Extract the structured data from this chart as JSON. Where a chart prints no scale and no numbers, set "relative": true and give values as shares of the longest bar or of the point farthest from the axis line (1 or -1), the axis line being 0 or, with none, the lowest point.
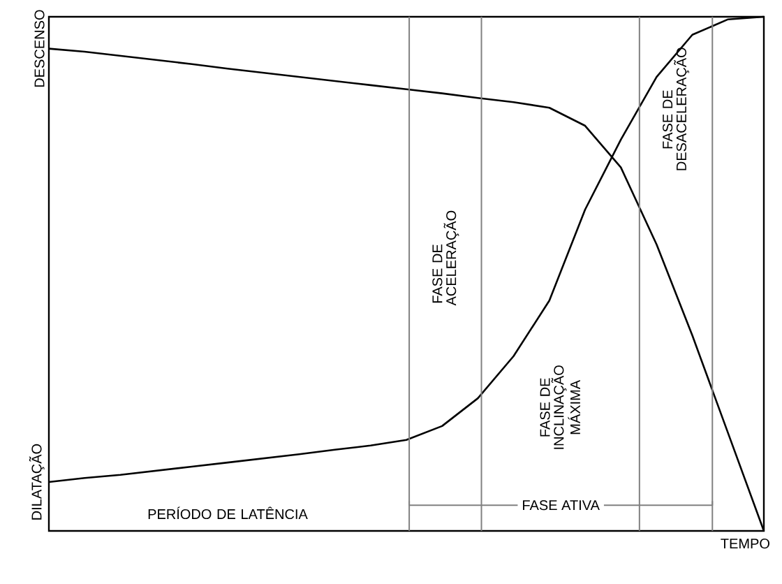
{
  "chart_data": {
    "type": "line",
    "relative": true,
    "xlabel": "TEMPO",
    "tick_labels": false,
    "marker": "none",
    "line_style": "solid",
    "categories": [
      null,
      null,
      null,
      null,
      null,
      null,
      null,
      null,
      null,
      null,
      null,
      null,
      null,
      null,
      null,
      null,
      null,
      null,
      null,
      null,
      null
    ],
    "series": [
      {
        "name": "DESCENSO",
        "color": "#000000",
        "values": [
          0.938,
          0.932,
          0.924,
          0.916,
          0.908,
          0.899,
          0.891,
          0.883,
          0.875,
          0.867,
          0.859,
          0.851,
          0.842,
          0.834,
          0.823,
          0.788,
          0.707,
          0.557,
          0.38,
          0.19,
          0
        ]
      },
      {
        "name": "DILATAÇÃO",
        "color": "#000000",
        "values": [
          0.095,
          0.103,
          0.109,
          0.117,
          0.125,
          0.133,
          0.141,
          0.149,
          0.158,
          0.166,
          0.177,
          0.204,
          0.258,
          0.34,
          0.448,
          0.625,
          0.761,
          0.883,
          0.965,
          0.995,
          1.0
        ]
      }
    ],
    "annotations": [
      "FASE DE ACELERAÇÃO",
      "FASE DE INCLINAÇÃO MÁXIMA",
      "FASE DE DESACELERAÇÃO",
      "PERÍODO DE LATÊNCIA",
      "FASE ATIVA"
    ]
  }
}
